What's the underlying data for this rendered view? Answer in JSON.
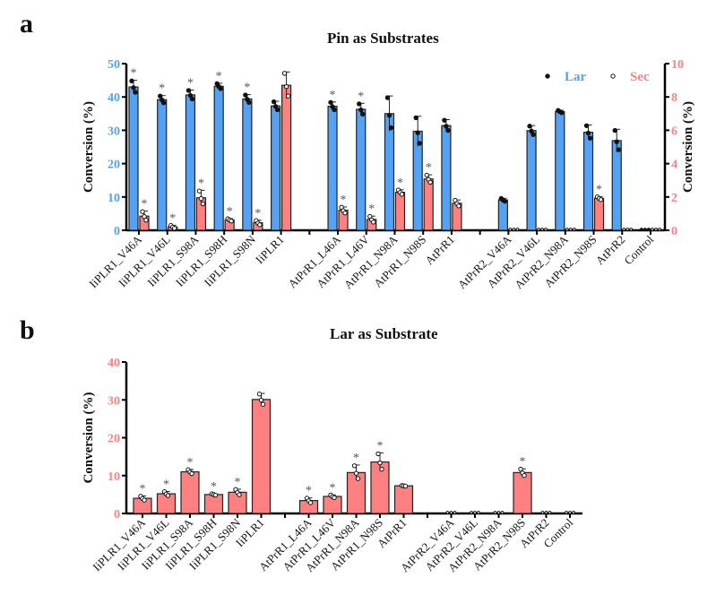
{
  "colors": {
    "lar_blue": "#55a1f4",
    "sec_red": "#fe8080",
    "axis": "#000000",
    "asterisk": "#555555"
  },
  "panels": [
    {
      "letter": "a",
      "title": "Pin as Substrates"
    },
    {
      "letter": "b",
      "title": "Lar as Substrate"
    }
  ],
  "chart_data": [
    {
      "type": "bar",
      "title": "Pin as Substrates",
      "ylabel": "Conversion (%)",
      "y2label": "Conversion (%)",
      "ylim": [
        0,
        50
      ],
      "y2lim": [
        0,
        10
      ],
      "yticks": [
        "0",
        "10",
        "20",
        "30",
        "40",
        "50"
      ],
      "y2ticks": [
        "0",
        "2",
        "4",
        "6",
        "8",
        "10"
      ],
      "legend": {
        "position": "top-right",
        "entries": [
          {
            "marker": "filled-dot",
            "label": "Lar"
          },
          {
            "marker": "open-dot",
            "label": "Sec"
          }
        ]
      },
      "categories": [
        "IiPLR1_V46A",
        "IiPLR1_V46L",
        "IiPLR1_S98A",
        "IiPLR1_S98H",
        "IiPLR1_S98N",
        "IiPLR1",
        "",
        "AtPrR1_L46A",
        "AtPrR1_L46V",
        "AtPrR1_N98A",
        "AtPrR1_N98S",
        "AtPrR1",
        "",
        "AtPrR2_V46A",
        "AtPrR2_V46L",
        "AtPrR2_N98A",
        "AtPrR2_N98S",
        "AtPrR2",
        "Control"
      ],
      "series": [
        {
          "name": "Lar",
          "axis": "left",
          "values": [
            43.0,
            39.2,
            40.6,
            43.2,
            39.4,
            37.3,
            null,
            37.2,
            36.3,
            35.0,
            29.7,
            31.4,
            null,
            9.1,
            29.9,
            35.6,
            29.4,
            26.9,
            0
          ],
          "errors": [
            2.0,
            1.2,
            1.5,
            0.9,
            1.3,
            1.4,
            null,
            1.3,
            1.8,
            5.3,
            4.5,
            1.8,
            null,
            0.5,
            1.5,
            0.4,
            2.2,
            3.4,
            0
          ],
          "significant": [
            true,
            true,
            true,
            true,
            true,
            false,
            false,
            true,
            true,
            false,
            false,
            false,
            false,
            false,
            false,
            false,
            false,
            false,
            false
          ]
        },
        {
          "name": "Sec",
          "axis": "right",
          "values": [
            0.85,
            0.2,
            1.95,
            0.62,
            0.45,
            8.7,
            null,
            1.2,
            0.65,
            2.28,
            3.08,
            1.62,
            null,
            0,
            0,
            0,
            1.92,
            0,
            0
          ],
          "errors": [
            0.3,
            0.1,
            0.45,
            0.08,
            0.15,
            0.8,
            null,
            0.2,
            0.2,
            0.15,
            0.25,
            0.2,
            null,
            0,
            0,
            0,
            0.1,
            0,
            0
          ],
          "significant": [
            true,
            true,
            true,
            true,
            true,
            false,
            false,
            true,
            true,
            true,
            true,
            false,
            false,
            false,
            false,
            false,
            true,
            false,
            false
          ]
        }
      ]
    },
    {
      "type": "bar",
      "title": "Lar as Substrate",
      "ylabel": "Conversion (%)",
      "ylim": [
        0,
        40
      ],
      "yticks": [
        "0",
        "10",
        "20",
        "30",
        "40"
      ],
      "categories": [
        "IiPLR1_V46A",
        "IiPLR1_V46L",
        "IiPLR1_S98A",
        "IiPLR1_S98H",
        "IiPLR1_S98N",
        "IiPLR1",
        "",
        "AtPrR1_L46A",
        "AtPrR1_L46V",
        "AtPrR1_N98A",
        "AtPrR1_N98S",
        "AtPrR1",
        "",
        "AtPrR2_V46A",
        "AtPrR2_V46L",
        "AtPrR2_N98A",
        "AtPrR2_N98S",
        "AtPrR2",
        "Control"
      ],
      "series": [
        {
          "name": "Sec",
          "values": [
            4.0,
            5.2,
            11.0,
            5.0,
            5.6,
            30.1,
            null,
            3.4,
            4.5,
            10.8,
            13.6,
            7.3,
            null,
            0,
            0,
            0,
            10.8,
            0,
            0
          ],
          "errors": [
            0.6,
            0.6,
            0.6,
            0.2,
            0.8,
            1.6,
            null,
            0.7,
            0.4,
            2.0,
            2.4,
            0.1,
            null,
            0,
            0,
            0,
            1.0,
            0,
            0
          ],
          "significant": [
            true,
            true,
            true,
            true,
            true,
            false,
            false,
            true,
            true,
            true,
            true,
            false,
            false,
            false,
            false,
            false,
            true,
            false,
            false
          ]
        }
      ]
    }
  ]
}
